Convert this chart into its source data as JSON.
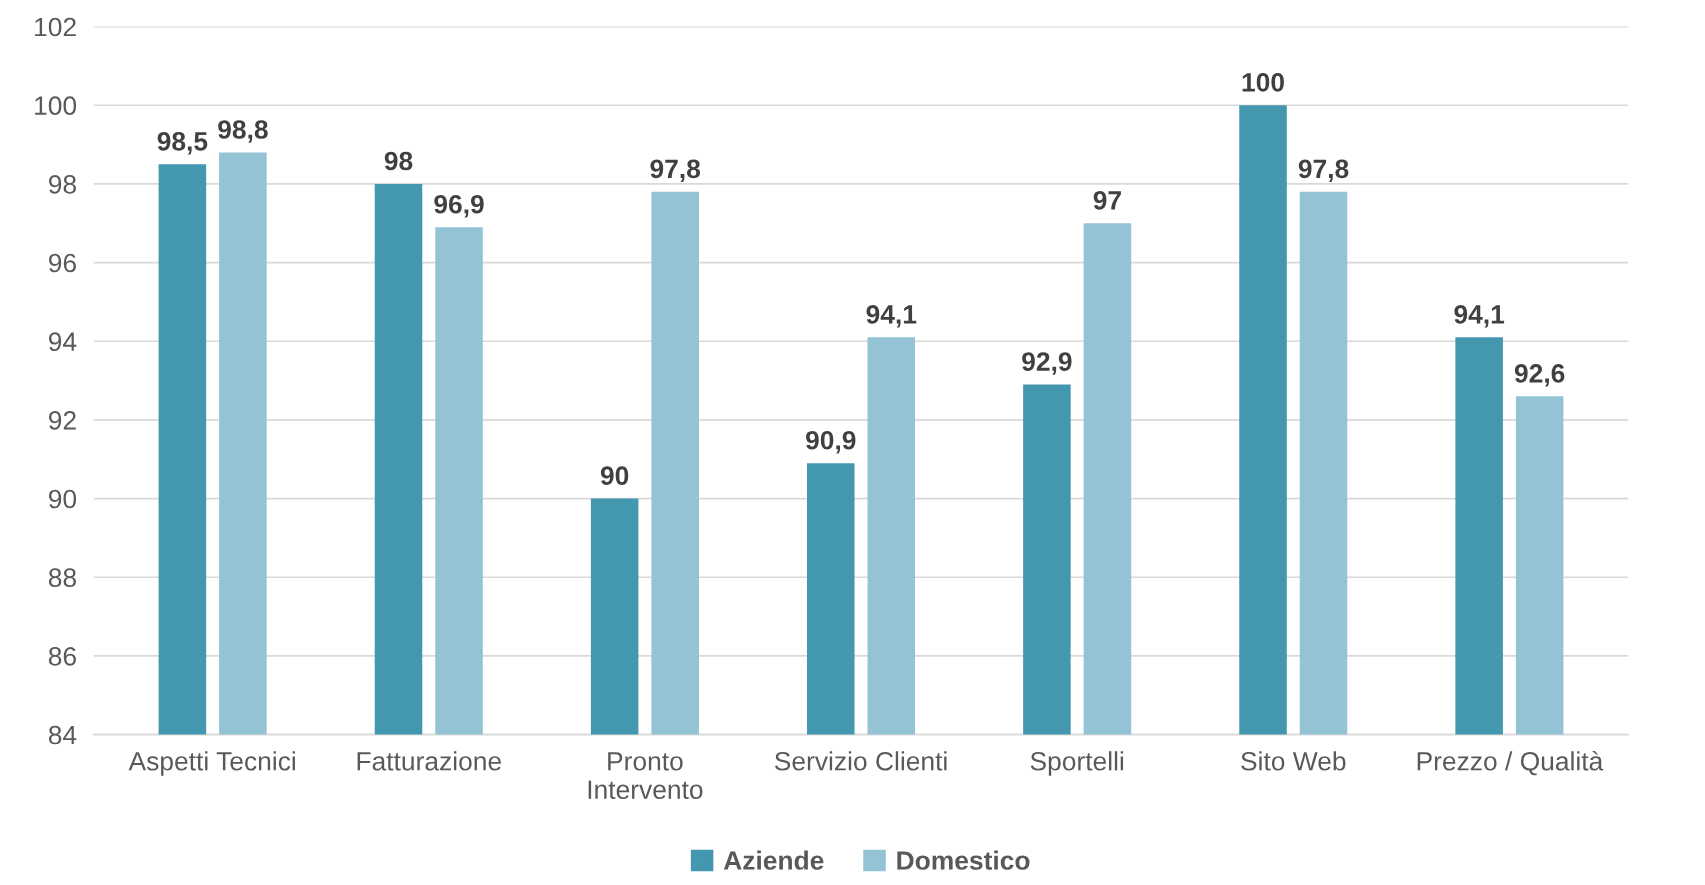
{
  "chart_data": {
    "type": "bar",
    "categories": [
      "Aspetti Tecnici",
      "Fatturazione",
      "Pronto\nIntervento",
      "Servizio Clienti",
      "Sportelli",
      "Sito Web",
      "Prezzo / Qualità"
    ],
    "series": [
      {
        "name": "Aziende",
        "color": "#4398b0",
        "values": [
          98.5,
          98,
          90,
          90.9,
          92.9,
          100,
          94.1
        ],
        "value_labels": [
          "98,5",
          "98",
          "90",
          "90,9",
          "92,9",
          "100",
          "94,1"
        ]
      },
      {
        "name": "Domestico",
        "color": "#93c3d4",
        "values": [
          98.8,
          96.9,
          97.8,
          94.1,
          97,
          97.8,
          92.6
        ],
        "value_labels": [
          "98,8",
          "96,9",
          "97,8",
          "94,1",
          "97",
          "97,8",
          "92,6"
        ]
      }
    ],
    "ylim": [
      84,
      102
    ],
    "yticks": [
      84,
      86,
      88,
      90,
      92,
      94,
      96,
      98,
      100,
      102
    ],
    "grid": "y",
    "legend": "bottom"
  }
}
